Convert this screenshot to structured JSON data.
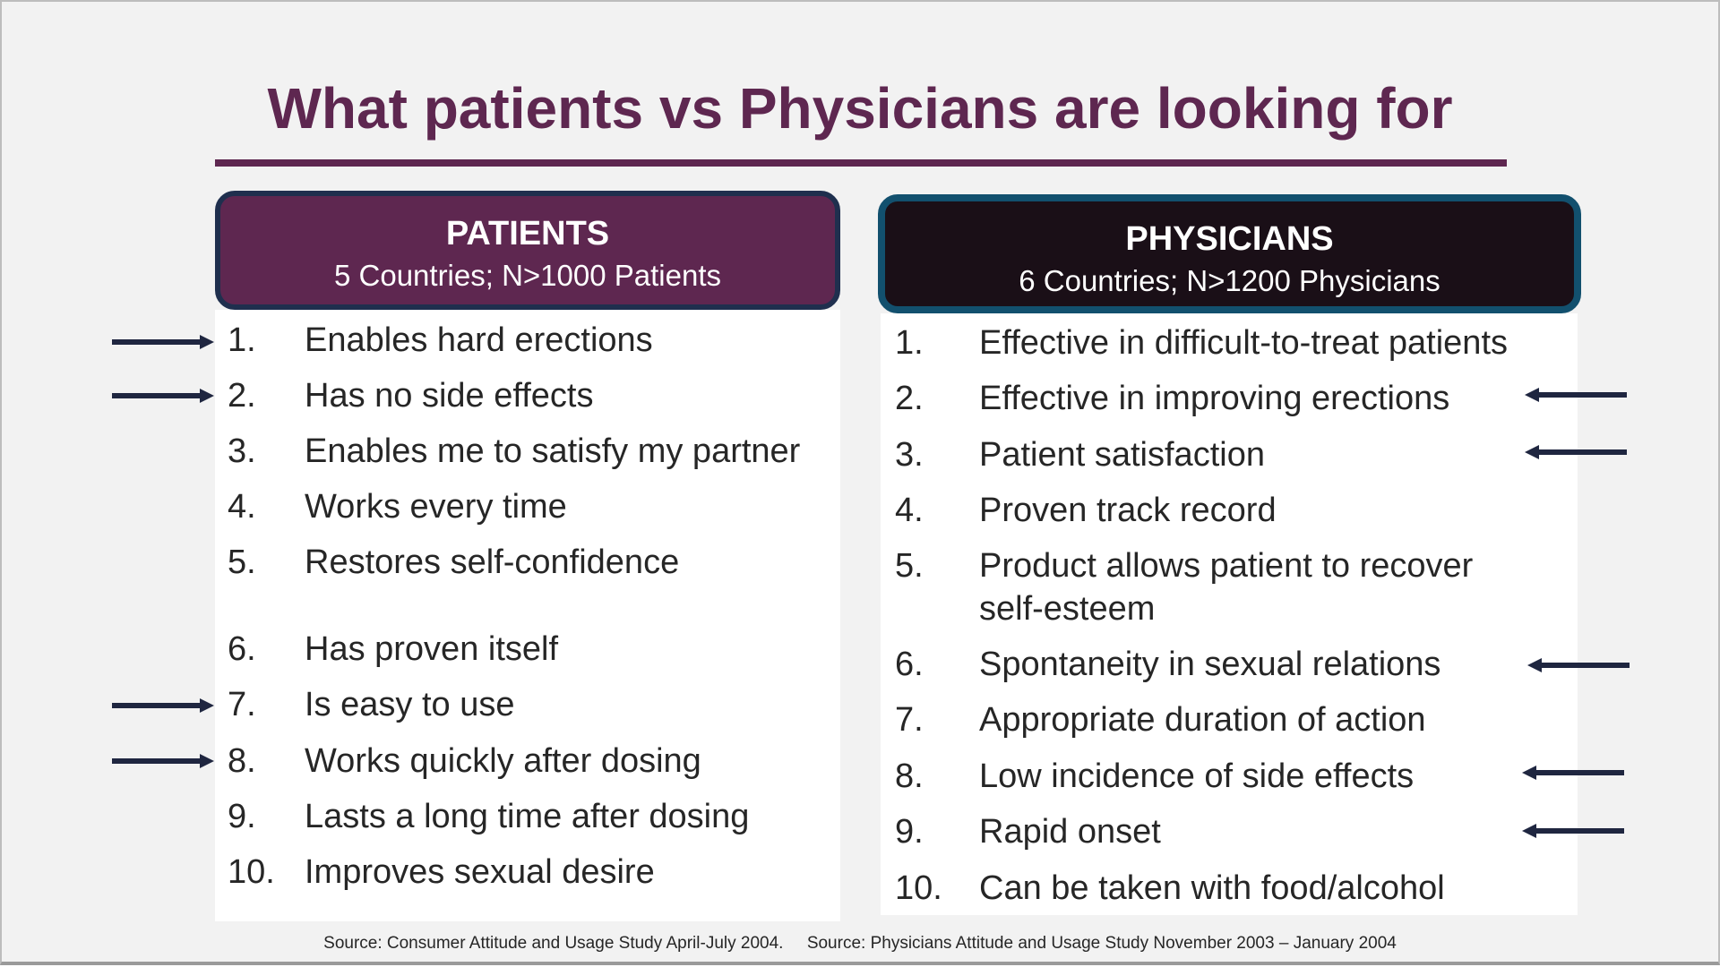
{
  "title": "What patients vs Physicians are looking for",
  "patients": {
    "header_title": "PATIENTS",
    "header_sub": "5 Countries; N>1000 Patients",
    "items": [
      {
        "num": "1.",
        "text": "Enables hard erections"
      },
      {
        "num": "2.",
        "text": "Has no side effects"
      },
      {
        "num": "3.",
        "text": "Enables me to satisfy my partner"
      },
      {
        "num": "4.",
        "text": "Works every time"
      },
      {
        "num": "5.",
        "text": "Restores self-confidence"
      },
      {
        "num": "6.",
        "text": "Has proven itself"
      },
      {
        "num": "7.",
        "text": "Is easy to use"
      },
      {
        "num": "8.",
        "text": "Works quickly after dosing"
      },
      {
        "num": "9.",
        "text": "Lasts a long time after dosing"
      },
      {
        "num": "10.",
        "text": "Improves sexual desire"
      }
    ]
  },
  "physicians": {
    "header_title": "PHYSICIANS",
    "header_sub": "6 Countries; N>1200 Physicians",
    "items": [
      {
        "num": "1.",
        "text": "Effective in difficult-to-treat patients"
      },
      {
        "num": "2.",
        "text": "Effective in improving erections"
      },
      {
        "num": "3.",
        "text": "Patient satisfaction"
      },
      {
        "num": "4.",
        "text": "Proven track record"
      },
      {
        "num": "5.",
        "text": "Product allows patient to recover self-esteem"
      },
      {
        "num": "6.",
        "text": "Spontaneity in sexual relations"
      },
      {
        "num": "7.",
        "text": "Appropriate duration of action"
      },
      {
        "num": "8.",
        "text": "Low incidence of side effects"
      },
      {
        "num": "9.",
        "text": "Rapid onset"
      },
      {
        "num": "10.",
        "text": "Can be taken with food/alcohol"
      }
    ]
  },
  "source": "Source: Consumer Attitude and Usage Study April-July 2004.     Source: Physicians Attitude and Usage Study November 2003 – January 2004",
  "colors": {
    "title": "#5e2750",
    "patients_header": "#5e2750",
    "physicians_header": "#1a0f17",
    "arrow": "#1f2640"
  },
  "icons": {
    "arrow_right": "arrow-right-icon",
    "arrow_left": "arrow-left-icon"
  }
}
